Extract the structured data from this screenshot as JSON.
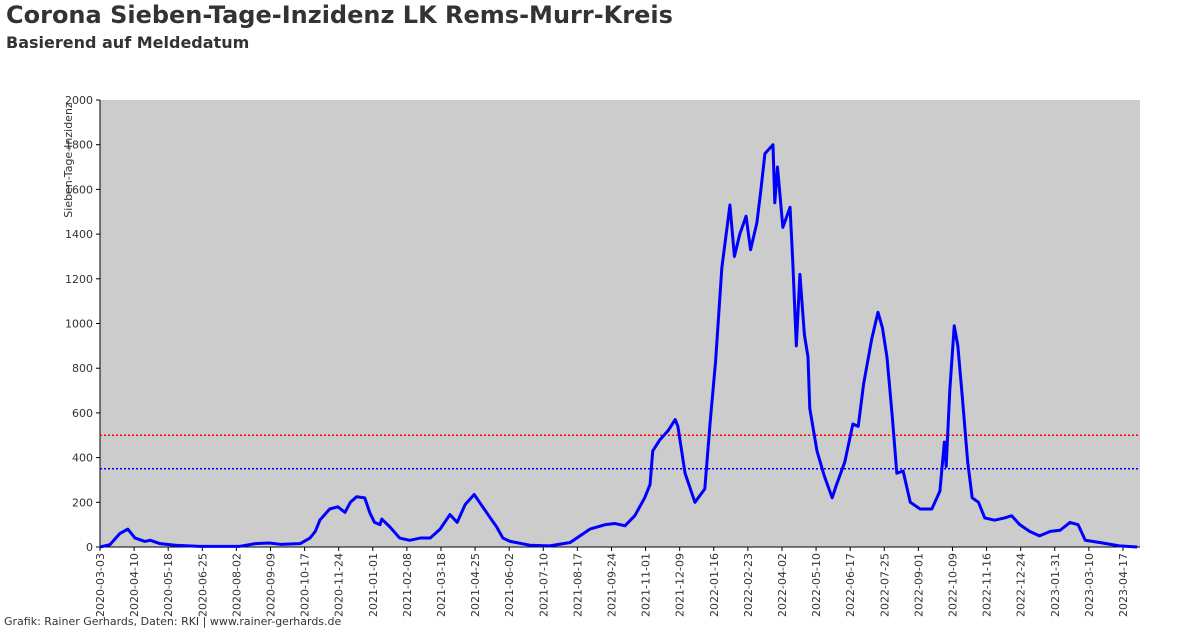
{
  "chart_data": {
    "type": "line",
    "title": "Corona Sieben-Tage-Inzidenz LK Rems-Murr-Kreis",
    "subtitle": "Basierend auf Meldedatum",
    "y_label": "Sieben-Tage-Inzidenz",
    "footer": "Grafik: Rainer Gerhards, Daten: RKI | www.rainer-gerhards.de",
    "background": "#cccccc",
    "ylim": [
      0,
      2000
    ],
    "yticks": [
      0,
      200,
      400,
      600,
      800,
      1000,
      1200,
      1400,
      1600,
      1800,
      2000
    ],
    "xlim": [
      "2020-03-03",
      "2023-05-06"
    ],
    "xticks": [
      "2020-03-03",
      "2020-04-10",
      "2020-05-18",
      "2020-06-25",
      "2020-08-02",
      "2020-09-09",
      "2020-10-17",
      "2020-11-24",
      "2021-01-01",
      "2021-02-08",
      "2021-03-18",
      "2021-04-25",
      "2021-06-02",
      "2021-07-10",
      "2021-08-17",
      "2021-09-24",
      "2021-11-01",
      "2021-12-09",
      "2022-01-16",
      "2022-02-23",
      "2022-04-02",
      "2022-05-10",
      "2022-06-17",
      "2022-07-25",
      "2022-09-01",
      "2022-10-09",
      "2022-11-16",
      "2022-12-24",
      "2023-01-31",
      "2023-03-10",
      "2023-04-17"
    ],
    "hlines": [
      {
        "value": 500,
        "color": "#ff0000"
      },
      {
        "value": 350,
        "color": "#0000ff"
      }
    ],
    "x": [
      "2020-03-03",
      "2020-03-14",
      "2020-03-25",
      "2020-04-03",
      "2020-04-11",
      "2020-04-22",
      "2020-04-28",
      "2020-05-09",
      "2020-05-26",
      "2020-06-22",
      "2020-08-06",
      "2020-08-23",
      "2020-09-08",
      "2020-09-20",
      "2020-10-12",
      "2020-10-23",
      "2020-10-29",
      "2020-11-03",
      "2020-11-14",
      "2020-11-23",
      "2020-12-01",
      "2020-12-07",
      "2020-12-14",
      "2020-12-23",
      "2020-12-29",
      "2021-01-03",
      "2021-01-09",
      "2021-01-11",
      "2021-01-20",
      "2021-01-31",
      "2021-02-11",
      "2021-02-23",
      "2021-03-06",
      "2021-03-17",
      "2021-03-28",
      "2021-04-05",
      "2021-04-14",
      "2021-04-24",
      "2021-04-30",
      "2021-05-12",
      "2021-05-19",
      "2021-05-26",
      "2021-06-03",
      "2021-06-25",
      "2021-07-17",
      "2021-08-09",
      "2021-08-31",
      "2021-09-17",
      "2021-09-28",
      "2021-10-09",
      "2021-10-20",
      "2021-10-31",
      "2021-11-06",
      "2021-11-09",
      "2021-11-17",
      "2021-11-26",
      "2021-12-04",
      "2021-12-07",
      "2021-12-15",
      "2021-12-26",
      "2022-01-06",
      "2022-01-12",
      "2022-01-18",
      "2022-01-25",
      "2022-02-03",
      "2022-02-08",
      "2022-02-14",
      "2022-02-21",
      "2022-02-26",
      "2022-03-05",
      "2022-03-09",
      "2022-03-14",
      "2022-03-23",
      "2022-03-25",
      "2022-03-28",
      "2022-04-03",
      "2022-04-11",
      "2022-04-14",
      "2022-04-18",
      "2022-04-22",
      "2022-04-27",
      "2022-05-01",
      "2022-05-03",
      "2022-05-11",
      "2022-05-19",
      "2022-05-28",
      "2022-06-01",
      "2022-06-11",
      "2022-06-20",
      "2022-06-26",
      "2022-07-02",
      "2022-07-11",
      "2022-07-18",
      "2022-07-23",
      "2022-07-28",
      "2022-08-03",
      "2022-08-08",
      "2022-08-15",
      "2022-08-23",
      "2022-09-03",
      "2022-09-16",
      "2022-09-25",
      "2022-09-30",
      "2022-10-02",
      "2022-10-06",
      "2022-10-11",
      "2022-10-15",
      "2022-10-20",
      "2022-10-26",
      "2022-10-31",
      "2022-11-07",
      "2022-11-14",
      "2022-11-25",
      "2022-12-06",
      "2022-12-14",
      "2022-12-23",
      "2023-01-03",
      "2023-01-14",
      "2023-01-26",
      "2023-02-06",
      "2023-02-17",
      "2023-02-26",
      "2023-03-06",
      "2023-03-22",
      "2023-04-13",
      "2023-05-03"
    ],
    "series": [
      {
        "color": "#0000ff",
        "values": [
          0,
          10,
          60,
          80,
          40,
          25,
          30,
          15,
          8,
          3,
          3,
          15,
          18,
          12,
          15,
          40,
          70,
          120,
          170,
          180,
          155,
          200,
          225,
          220,
          150,
          110,
          100,
          125,
          90,
          40,
          30,
          40,
          40,
          80,
          145,
          110,
          190,
          235,
          200,
          130,
          90,
          40,
          25,
          8,
          5,
          20,
          80,
          100,
          105,
          95,
          140,
          220,
          280,
          430,
          480,
          520,
          570,
          540,
          330,
          200,
          260,
          560,
          830,
          1250,
          1530,
          1300,
          1400,
          1480,
          1330,
          1450,
          1580,
          1760,
          1800,
          1540,
          1700,
          1430,
          1520,
          1280,
          900,
          1220,
          950,
          850,
          620,
          430,
          320,
          220,
          270,
          380,
          550,
          540,
          730,
          930,
          1050,
          980,
          850,
          580,
          330,
          340,
          200,
          170,
          170,
          250,
          470,
          360,
          700,
          990,
          900,
          670,
          380,
          220,
          200,
          130,
          120,
          130,
          140,
          100,
          70,
          50,
          70,
          75,
          110,
          100,
          30,
          20,
          5,
          0
        ]
      }
    ]
  }
}
